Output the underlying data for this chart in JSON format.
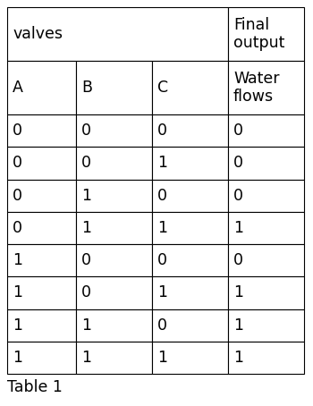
{
  "header1_col1": "valves",
  "header1_col4": "Final\noutput",
  "header2": [
    "A",
    "B",
    "C",
    "Water\nflows"
  ],
  "rows": [
    [
      "0",
      "0",
      "0",
      "0"
    ],
    [
      "0",
      "0",
      "1",
      "0"
    ],
    [
      "0",
      "1",
      "0",
      "0"
    ],
    [
      "0",
      "1",
      "1",
      "1"
    ],
    [
      "1",
      "0",
      "0",
      "0"
    ],
    [
      "1",
      "0",
      "1",
      "1"
    ],
    [
      "1",
      "1",
      "0",
      "1"
    ],
    [
      "1",
      "1",
      "1",
      "1"
    ]
  ],
  "caption": "Table 1",
  "bg_color": "#ffffff",
  "border_color": "#000000",
  "text_color": "#000000",
  "font_size": 12.5,
  "caption_font_size": 12.5,
  "header_font_size": 12.5,
  "fig_width": 3.5,
  "fig_height": 4.54,
  "dpi": 100
}
